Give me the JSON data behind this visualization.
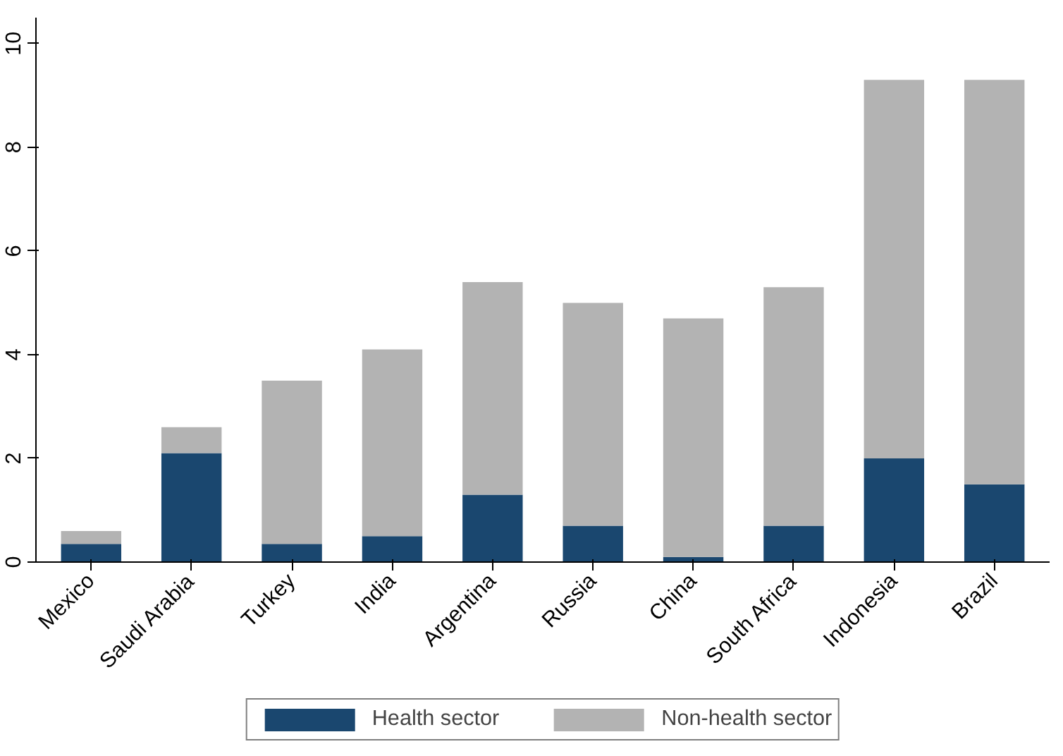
{
  "chart_data": {
    "type": "bar",
    "stacked": true,
    "categories": [
      "Mexico",
      "Saudi Arabia",
      "Turkey",
      "India",
      "Argentina",
      "Russia",
      "China",
      "South Africa",
      "Indonesia",
      "Brazil"
    ],
    "series": [
      {
        "name": "Health sector",
        "color": "#1a476f",
        "values": [
          0.35,
          2.1,
          0.35,
          0.5,
          1.3,
          0.7,
          0.1,
          0.7,
          2.0,
          1.5
        ]
      },
      {
        "name": "Non-health sector",
        "color": "#b3b3b3",
        "values": [
          0.25,
          0.5,
          3.15,
          3.6,
          4.1,
          4.3,
          4.6,
          4.6,
          7.3,
          7.8
        ]
      }
    ],
    "ylim": [
      0,
      10.5
    ],
    "yticks": [
      0,
      2,
      4,
      6,
      8,
      10
    ],
    "grid": false,
    "legend": "bottom"
  }
}
